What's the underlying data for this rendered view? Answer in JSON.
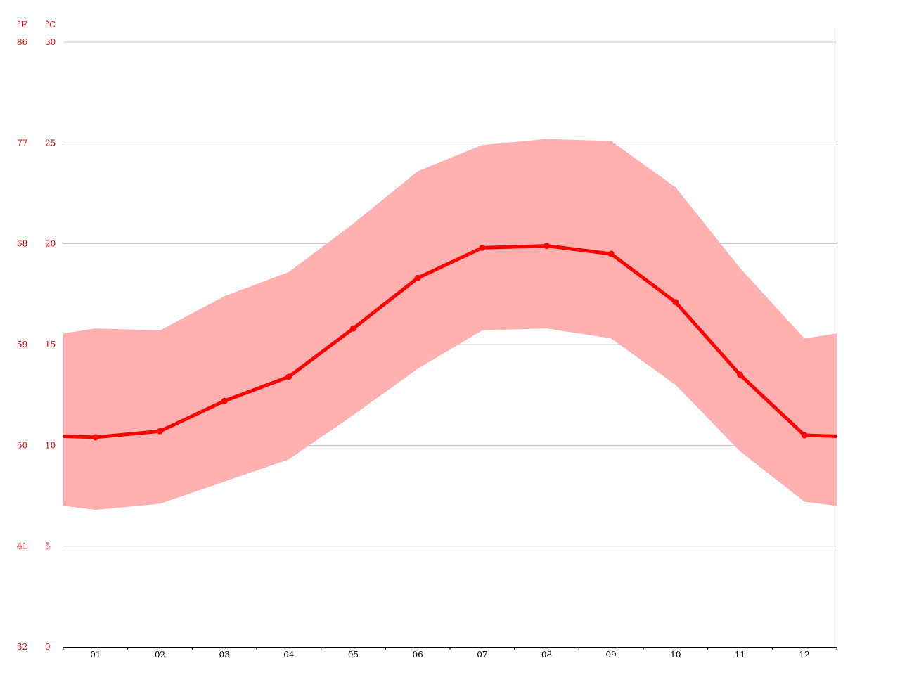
{
  "chart_data": {
    "type": "line",
    "categories": [
      "01",
      "02",
      "03",
      "04",
      "05",
      "06",
      "07",
      "08",
      "09",
      "10",
      "11",
      "12"
    ],
    "unit_labels": {
      "f": "°F",
      "c": "°C"
    },
    "ylim": [
      0,
      30
    ],
    "y_ticks": [
      {
        "c": "0",
        "f": "32"
      },
      {
        "c": "5",
        "f": "41"
      },
      {
        "c": "10",
        "f": "50"
      },
      {
        "c": "15",
        "f": "59"
      },
      {
        "c": "20",
        "f": "68"
      },
      {
        "c": "25",
        "f": "77"
      },
      {
        "c": "30",
        "f": "86"
      }
    ],
    "grid": true,
    "series": [
      {
        "values": [
          10.4,
          10.7,
          12.2,
          13.4,
          15.8,
          18.3,
          19.8,
          19.9,
          19.5,
          17.1,
          13.5,
          10.5
        ]
      },
      {
        "range": "max",
        "values": [
          15.8,
          15.7,
          17.4,
          18.6,
          21.0,
          23.6,
          24.9,
          25.2,
          25.1,
          22.8,
          18.8,
          15.3
        ]
      },
      {
        "range": "min",
        "values": [
          6.8,
          7.1,
          8.2,
          9.3,
          11.5,
          13.8,
          15.7,
          15.8,
          15.3,
          13.0,
          9.7,
          7.2
        ]
      }
    ],
    "colors": {
      "line": "#ff0000",
      "band": "#ffb1b2",
      "grid": "#c8c8c8",
      "axis": "#000000",
      "tick_text": "#ff0000"
    }
  }
}
